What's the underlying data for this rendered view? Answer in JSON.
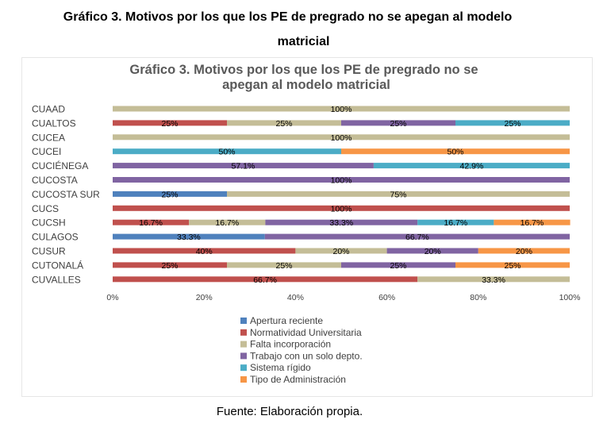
{
  "document": {
    "title_line1": "Gráfico 3. Motivos por los que los PE de pregrado no se apegan al modelo",
    "title_line2": "matricial",
    "source": "Fuente: Elaboración propia."
  },
  "chart_data": {
    "type": "bar",
    "orientation": "horizontal",
    "stacked": "percent",
    "title_line1": "Gráfico 3. Motivos por los que los PE de pregrado no se",
    "title_line2": "apegan al modelo matricial",
    "categories": [
      "CUAAD",
      "CUALTOS",
      "CUCEA",
      "CUCEI",
      "CUCIÉNEGA",
      "CUCOSTA",
      "CUCOSTA SUR",
      "CUCS",
      "CUCSH",
      "CULAGOS",
      "CUSUR",
      "CUTONALÁ",
      "CUVALLES"
    ],
    "series": [
      {
        "name": "Apertura reciente",
        "color": "#4f81bd",
        "values": [
          0,
          0,
          0,
          0,
          0,
          0,
          25,
          0,
          0,
          33.3,
          0,
          0,
          0
        ],
        "labels": [
          "",
          "",
          "",
          "",
          "",
          "",
          "25%",
          "",
          "",
          "33.3%",
          "",
          "",
          ""
        ]
      },
      {
        "name": "Normatividad Universitaria",
        "color": "#c0504d",
        "values": [
          0,
          25,
          0,
          0,
          0,
          0,
          0,
          100,
          16.7,
          0,
          40,
          25,
          66.7
        ],
        "labels": [
          "",
          "25%",
          "",
          "",
          "",
          "",
          "",
          "100%",
          "16.7%",
          "",
          "40%",
          "25%",
          "66.7%"
        ]
      },
      {
        "name": "Falta incorporación",
        "color": "#c4bd97",
        "values": [
          100,
          25,
          100,
          0,
          0,
          0,
          75,
          0,
          16.7,
          0,
          20,
          25,
          33.3
        ],
        "labels": [
          "100%",
          "25%",
          "100%",
          "",
          "",
          "",
          "75%",
          "",
          "16.7%",
          "",
          "20%",
          "25%",
          "33.3%"
        ]
      },
      {
        "name": "Trabajo con un solo depto.",
        "color": "#8064a2",
        "values": [
          0,
          25,
          0,
          0,
          57.1,
          100,
          0,
          0,
          33.3,
          66.7,
          20,
          25,
          0
        ],
        "labels": [
          "",
          "25%",
          "",
          "",
          "57.1%",
          "100%",
          "",
          "",
          "33.3%",
          "66.7%",
          "20%",
          "25%",
          ""
        ]
      },
      {
        "name": "Sistema rígido",
        "color": "#4bacc6",
        "values": [
          0,
          25,
          0,
          50,
          42.9,
          0,
          0,
          0,
          16.7,
          0,
          0,
          0,
          0
        ],
        "labels": [
          "",
          "25%",
          "",
          "50%",
          "42.9%",
          "",
          "",
          "",
          "16.7%",
          "",
          "",
          "",
          ""
        ]
      },
      {
        "name": "Tipo de Administración",
        "color": "#f79646",
        "values": [
          0,
          0,
          0,
          50,
          0,
          0,
          0,
          0,
          16.7,
          0,
          20,
          25,
          0
        ],
        "labels": [
          "",
          "",
          "",
          "50%",
          "",
          "",
          "",
          "",
          "16.7%",
          "",
          "20%",
          "25%",
          ""
        ]
      }
    ],
    "x_ticks": [
      "0%",
      "20%",
      "40%",
      "60%",
      "80%",
      "100%"
    ],
    "xlim": [
      0,
      100
    ],
    "grid": false,
    "legend_position": "bottom"
  }
}
